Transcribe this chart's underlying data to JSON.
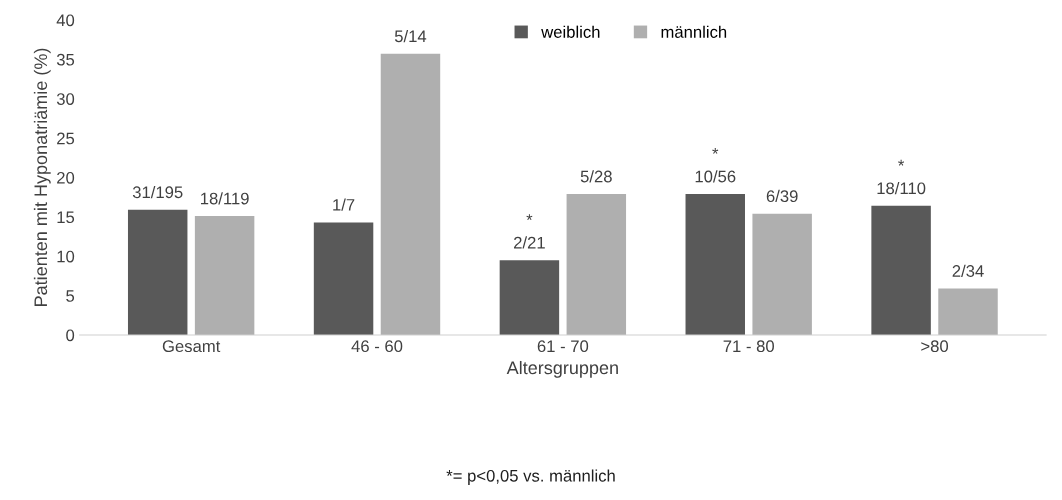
{
  "chart_data": {
    "type": "bar",
    "xlabel": "Altersgruppen",
    "ylabel": "Patienten mit Hyponatriämie (%)",
    "categories": [
      "Gesamt",
      "46 - 60",
      "61 - 70",
      "71 - 80",
      ">80"
    ],
    "series": [
      {
        "name": "weiblich",
        "color": "#595959",
        "values": [
          15.9,
          14.3,
          9.5,
          17.9,
          16.4
        ],
        "value_labels": [
          "31/195",
          "1/7",
          "*\n2/21",
          "*\n10/56",
          "*\n18/110"
        ]
      },
      {
        "name": "männlich",
        "color": "#afafaf",
        "values": [
          15.1,
          35.7,
          17.9,
          15.4,
          5.9
        ],
        "value_labels": [
          "18/119",
          "5/14",
          "5/28",
          "6/39",
          "2/34"
        ]
      }
    ],
    "ylim": [
      0,
      40
    ],
    "yticks": [
      0,
      5,
      10,
      15,
      20,
      25,
      30,
      35,
      40
    ],
    "grid": false,
    "legend": "top",
    "annotations": [
      "*= p<0,05 vs. männlich"
    ]
  }
}
